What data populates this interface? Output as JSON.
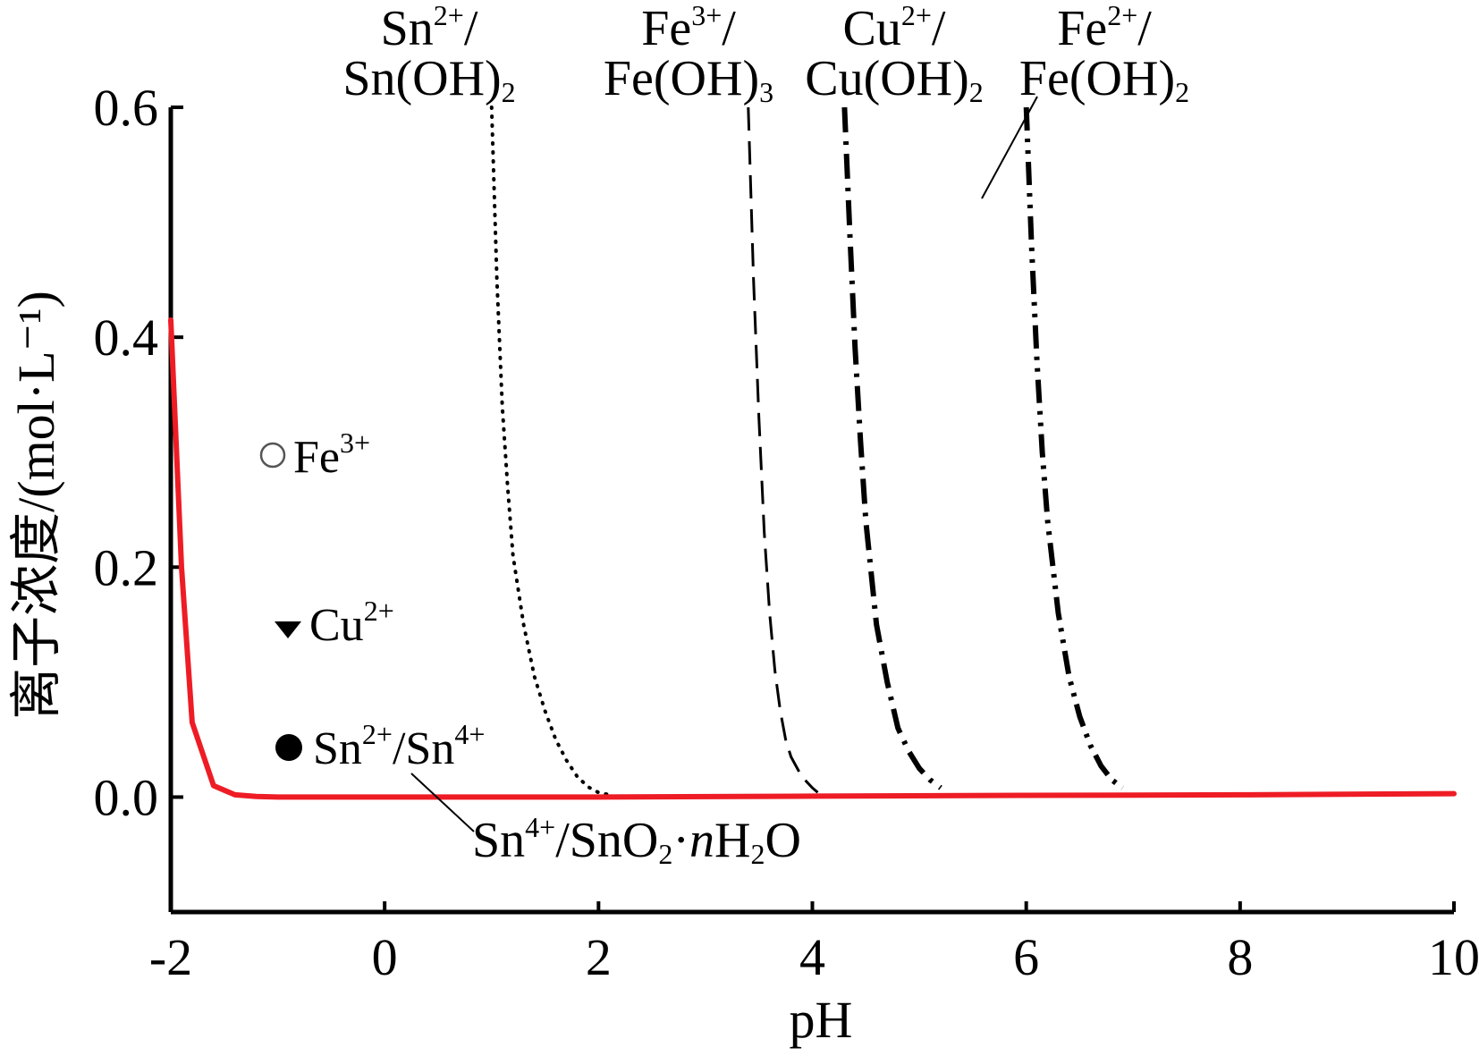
{
  "chart_data": {
    "type": "line",
    "xlabel": "pH",
    "ylabel": "离子浓度/(mol·L⁻¹)",
    "xlim": [
      -2,
      10
    ],
    "ylim": [
      -0.1,
      0.6
    ],
    "x_ticks": [
      "-2",
      "0",
      "2",
      "4",
      "6",
      "8",
      "10"
    ],
    "x_tick_values": [
      -2,
      0,
      2,
      4,
      6,
      8,
      10
    ],
    "y_ticks": [
      "0.0",
      "0.2",
      "0.4",
      "0.6"
    ],
    "y_tick_values": [
      0.0,
      0.2,
      0.4,
      0.6
    ],
    "grid": false,
    "colors": {
      "sn4_curve": "#ee1c25",
      "other_curves": "#000000",
      "axes": "#000000"
    },
    "series": [
      {
        "name": "Sn2+/Sn(OH)2",
        "style": "dotted",
        "x": [
          1.0,
          1.05,
          1.1,
          1.15,
          1.2,
          1.3,
          1.4,
          1.5,
          1.6,
          1.7,
          1.8,
          1.9,
          2.0,
          2.1
        ],
        "y": [
          0.6,
          0.45,
          0.34,
          0.27,
          0.21,
          0.15,
          0.105,
          0.075,
          0.05,
          0.032,
          0.018,
          0.009,
          0.004,
          0.002
        ]
      },
      {
        "name": "Fe3+/Fe(OH)3",
        "style": "dashed",
        "x": [
          3.4,
          3.45,
          3.5,
          3.55,
          3.6,
          3.65,
          3.7,
          3.75,
          3.8,
          3.9,
          4.0,
          4.05
        ],
        "y": [
          0.6,
          0.45,
          0.33,
          0.23,
          0.16,
          0.11,
          0.075,
          0.05,
          0.035,
          0.018,
          0.008,
          0.004
        ]
      },
      {
        "name": "Cu2+/Cu(OH)2",
        "style": "dashdot",
        "x": [
          4.3,
          4.35,
          4.4,
          4.45,
          4.5,
          4.6,
          4.7,
          4.8,
          4.9,
          5.0,
          5.1,
          5.2
        ],
        "y": [
          0.6,
          0.49,
          0.39,
          0.31,
          0.24,
          0.15,
          0.1,
          0.06,
          0.04,
          0.025,
          0.015,
          0.008
        ]
      },
      {
        "name": "Fe2+/Fe(OH)2",
        "style": "dashdotdot",
        "x": [
          6.0,
          6.05,
          6.1,
          6.15,
          6.2,
          6.3,
          6.4,
          6.5,
          6.6,
          6.7,
          6.8,
          6.9
        ],
        "y": [
          0.6,
          0.48,
          0.38,
          0.3,
          0.24,
          0.16,
          0.105,
          0.07,
          0.045,
          0.027,
          0.015,
          0.008
        ]
      },
      {
        "name": "Sn4+/SnO2·nH2O",
        "style": "solid-red",
        "x": [
          -2.0,
          -1.9,
          -1.8,
          -1.6,
          -1.4,
          -1.2,
          -1.0,
          0.0,
          2.0,
          4.0,
          6.0,
          8.0,
          10.0
        ],
        "y": [
          0.415,
          0.2,
          0.065,
          0.01,
          0.002,
          0.0005,
          0.0,
          0.0,
          0.0,
          0.0008,
          0.0015,
          0.002,
          0.003
        ]
      }
    ],
    "curve_labels": [
      {
        "id": "sn2",
        "top": "Sn",
        "top_sup": "2+",
        "top_tail": "/",
        "bottom": "Sn(OH)",
        "bottom_sub": "2"
      },
      {
        "id": "fe3",
        "top": "Fe",
        "top_sup": "3+",
        "top_tail": "/",
        "bottom": "Fe(OH)",
        "bottom_sub": "3"
      },
      {
        "id": "cu2",
        "top": "Cu",
        "top_sup": "2+",
        "top_tail": "/",
        "bottom": "Cu(OH)",
        "bottom_sub": "2"
      },
      {
        "id": "fe2",
        "top": "Fe",
        "top_sup": "2+",
        "top_tail": "/",
        "bottom": "Fe(OH)",
        "bottom_sub": "2"
      }
    ],
    "sn4_label": {
      "a": "Sn",
      "a_sup": "4+",
      "b": "/SnO",
      "b_sub": "2",
      "c": "·",
      "n": "n",
      "d": "H",
      "d_sub": "2",
      "e": "O"
    },
    "legend": [
      {
        "marker": "open-circle",
        "label": "Fe",
        "sup": "3+"
      },
      {
        "marker": "down-triangle",
        "label": "Cu",
        "sup": "2+"
      },
      {
        "marker": "filled-circle",
        "label": "Sn",
        "sup": "2+",
        "tail": "/Sn",
        "tail_sup": "4+"
      }
    ]
  }
}
